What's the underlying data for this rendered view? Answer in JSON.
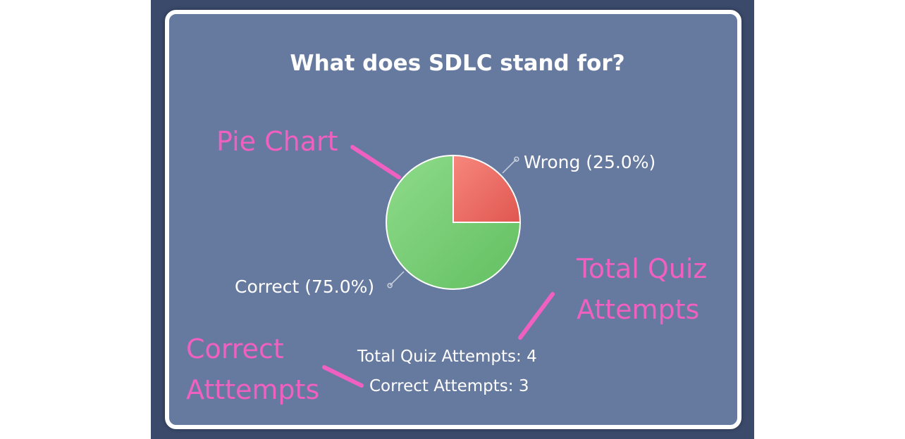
{
  "chart_data": {
    "type": "pie",
    "title": "What does SDLC stand for?",
    "slices": [
      {
        "label": "Correct (75.0%)",
        "value": 75.0,
        "color": "#6cc56a"
      },
      {
        "label": "Wrong (25.0%)",
        "value": 25.0,
        "color": "#e6605a"
      }
    ]
  },
  "stats": {
    "total_attempts": "Total Quiz Attempts: 4",
    "correct_attempts": "Correct Attempts: 3"
  },
  "annotations": {
    "pie_chart": "Pie Chart",
    "total_quiz_line1": "Total Quiz",
    "total_quiz_line2": "Attempts",
    "correct_line1": "Correct",
    "correct_line2": "Atttempts",
    "color": "#f060c0"
  }
}
